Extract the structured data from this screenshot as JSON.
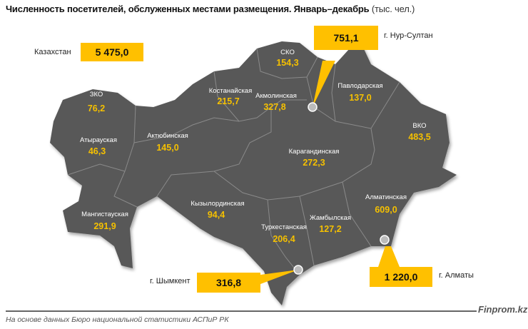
{
  "title": "Численность посетителей, обслуженных местами размещения. Январь–декабрь",
  "unit": "(тыс. чел.)",
  "country": {
    "label": "Казахстан",
    "value": "5 475,0"
  },
  "regions": [
    {
      "name": "СКО",
      "value": "154,3"
    },
    {
      "name": "Костанайская",
      "value": "215,7"
    },
    {
      "name": "Акмолинская",
      "value": "327,8"
    },
    {
      "name": "Павлодарская",
      "value": "137,0"
    },
    {
      "name": "ЗКО",
      "value": "76,2"
    },
    {
      "name": "Атырауская",
      "value": "46,3"
    },
    {
      "name": "Актюбинская",
      "value": "145,0"
    },
    {
      "name": "ВКО",
      "value": "483,5"
    },
    {
      "name": "Карагандинская",
      "value": "272,3"
    },
    {
      "name": "Мангистауская",
      "value": "291,9"
    },
    {
      "name": "Кызылординская",
      "value": "94,4"
    },
    {
      "name": "Туркестанская",
      "value": "206,4"
    },
    {
      "name": "Жамбылская",
      "value": "127,2"
    },
    {
      "name": "Алматинская",
      "value": "609,0"
    }
  ],
  "cities": [
    {
      "name": "г. Нур-Султан",
      "value": "751,1"
    },
    {
      "name": "г. Шымкент",
      "value": "316,8"
    },
    {
      "name": "г. Алматы",
      "value": "1 220,0"
    }
  ],
  "colors": {
    "map": "#595959",
    "highlight": "#ffc000",
    "value_text": "#f5c000"
  },
  "brand": "Finprom.kz",
  "source": "На основе данных Бюро национальной статистики АСПиР РК"
}
